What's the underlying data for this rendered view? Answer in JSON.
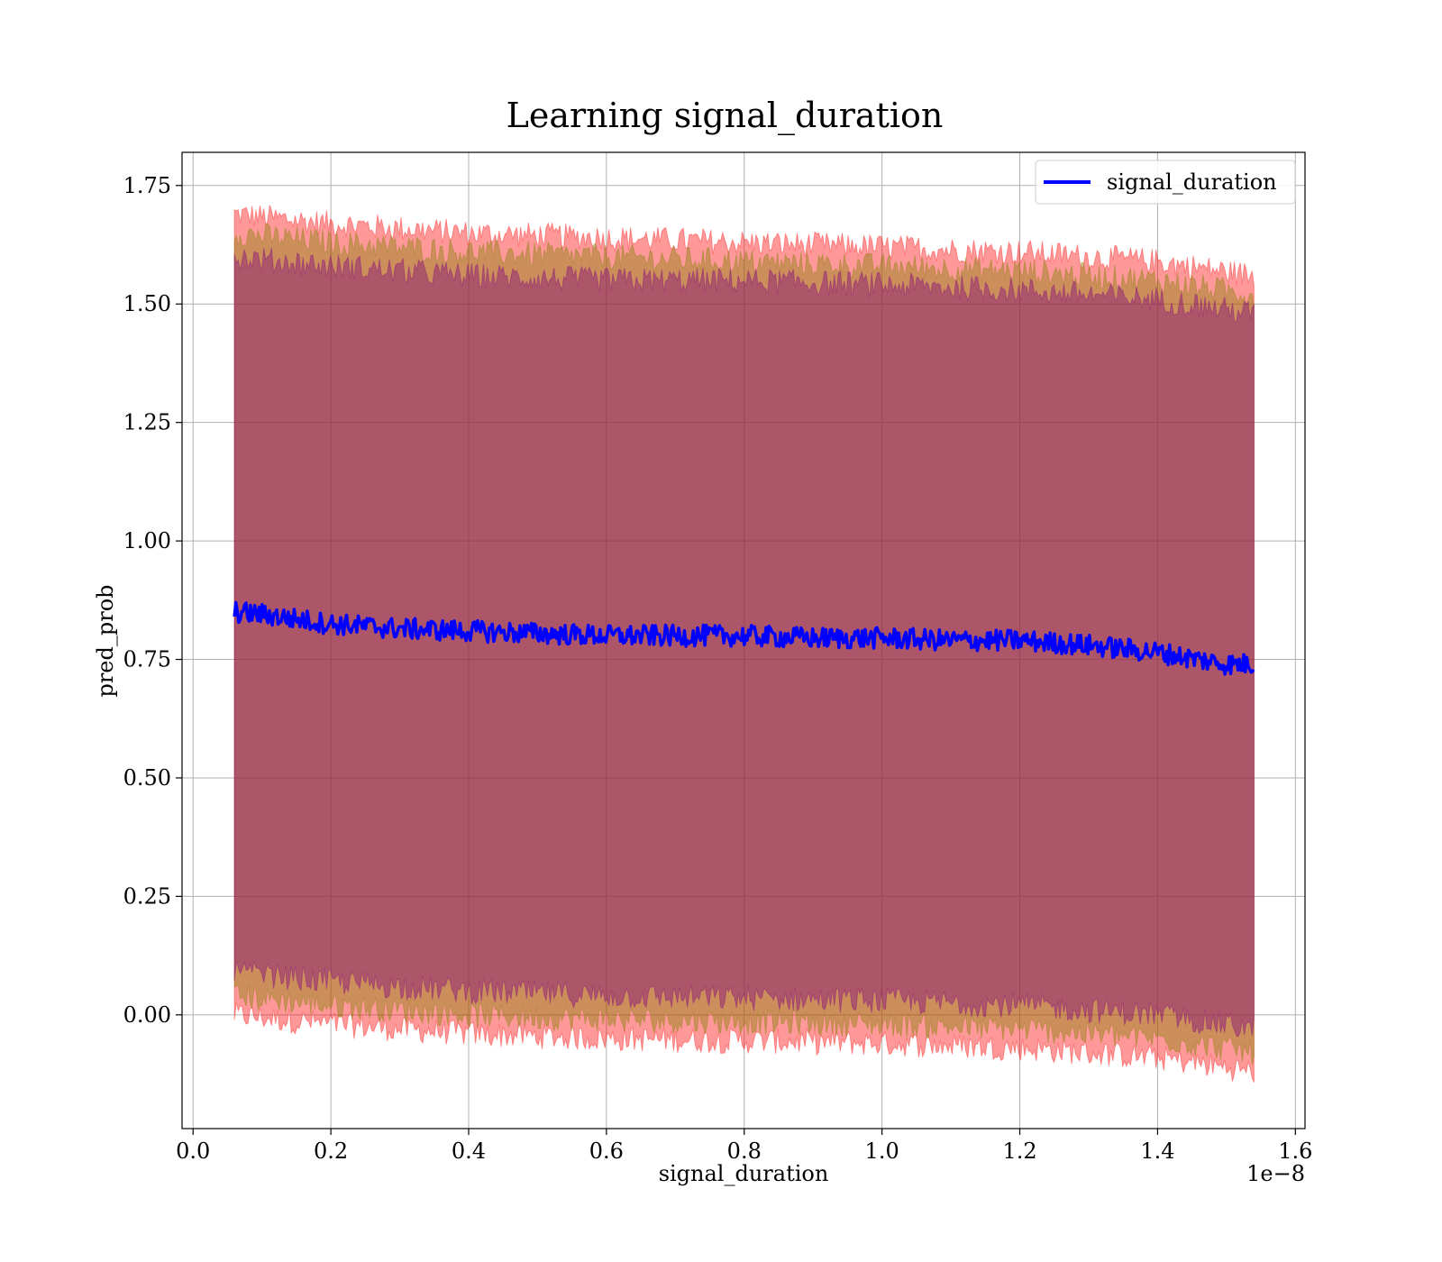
{
  "chart_data": {
    "type": "line",
    "title": "Learning signal_duration",
    "xlabel": "signal_duration",
    "ylabel": "pred_prob",
    "x_offset_label": "1e−8",
    "xlim": [
      -0.016,
      1.614
    ],
    "ylim": [
      -0.24,
      1.82
    ],
    "x_ticks": [
      0.0,
      0.2,
      0.4,
      0.6,
      0.8,
      1.0,
      1.2,
      1.4,
      1.6
    ],
    "x_tick_labels": [
      "0.0",
      "0.2",
      "0.4",
      "0.6",
      "0.8",
      "1.0",
      "1.2",
      "1.4",
      "1.6"
    ],
    "y_ticks": [
      0.0,
      0.25,
      0.5,
      0.75,
      1.0,
      1.25,
      1.5,
      1.75
    ],
    "y_tick_labels": [
      "0.00",
      "0.25",
      "0.50",
      "0.75",
      "1.00",
      "1.25",
      "1.50",
      "1.75"
    ],
    "grid": true,
    "legend": {
      "position": "top-right",
      "entries": [
        "signal_duration"
      ]
    },
    "series": [
      {
        "name": "signal_duration",
        "role": "mean",
        "color": "#0000ff",
        "x": [
          0.06,
          0.1,
          0.2,
          0.3,
          0.4,
          0.5,
          0.6,
          0.7,
          0.8,
          0.9,
          1.0,
          1.1,
          1.2,
          1.3,
          1.4,
          1.5,
          1.54
        ],
        "y": [
          0.85,
          0.845,
          0.825,
          0.815,
          0.81,
          0.805,
          0.8,
          0.8,
          0.8,
          0.795,
          0.795,
          0.79,
          0.79,
          0.78,
          0.765,
          0.74,
          0.74
        ]
      }
    ],
    "bands": [
      {
        "color": "#ff0000",
        "x": [
          0.06,
          0.2,
          0.4,
          0.6,
          0.8,
          1.0,
          1.2,
          1.4,
          1.54
        ],
        "upper": [
          1.69,
          1.67,
          1.65,
          1.64,
          1.63,
          1.62,
          1.61,
          1.59,
          1.56
        ],
        "lower": [
          0.0,
          -0.02,
          -0.04,
          -0.05,
          -0.055,
          -0.06,
          -0.07,
          -0.09,
          -0.12
        ]
      },
      {
        "color": "#808000",
        "x": [
          0.06,
          0.2,
          0.4,
          0.6,
          0.8,
          1.0,
          1.2,
          1.4,
          1.54
        ],
        "upper": [
          1.65,
          1.63,
          1.61,
          1.6,
          1.59,
          1.58,
          1.57,
          1.55,
          1.52
        ],
        "lower": [
          0.04,
          0.02,
          0.0,
          -0.01,
          -0.015,
          -0.02,
          -0.03,
          -0.05,
          -0.08
        ]
      },
      {
        "color": "#800080",
        "x": [
          0.06,
          0.2,
          0.4,
          0.6,
          0.8,
          1.0,
          1.2,
          1.4,
          1.54
        ],
        "upper": [
          1.6,
          1.58,
          1.56,
          1.55,
          1.55,
          1.54,
          1.53,
          1.51,
          1.48
        ],
        "lower": [
          0.09,
          0.07,
          0.05,
          0.04,
          0.035,
          0.03,
          0.02,
          0.0,
          -0.03
        ]
      }
    ]
  }
}
